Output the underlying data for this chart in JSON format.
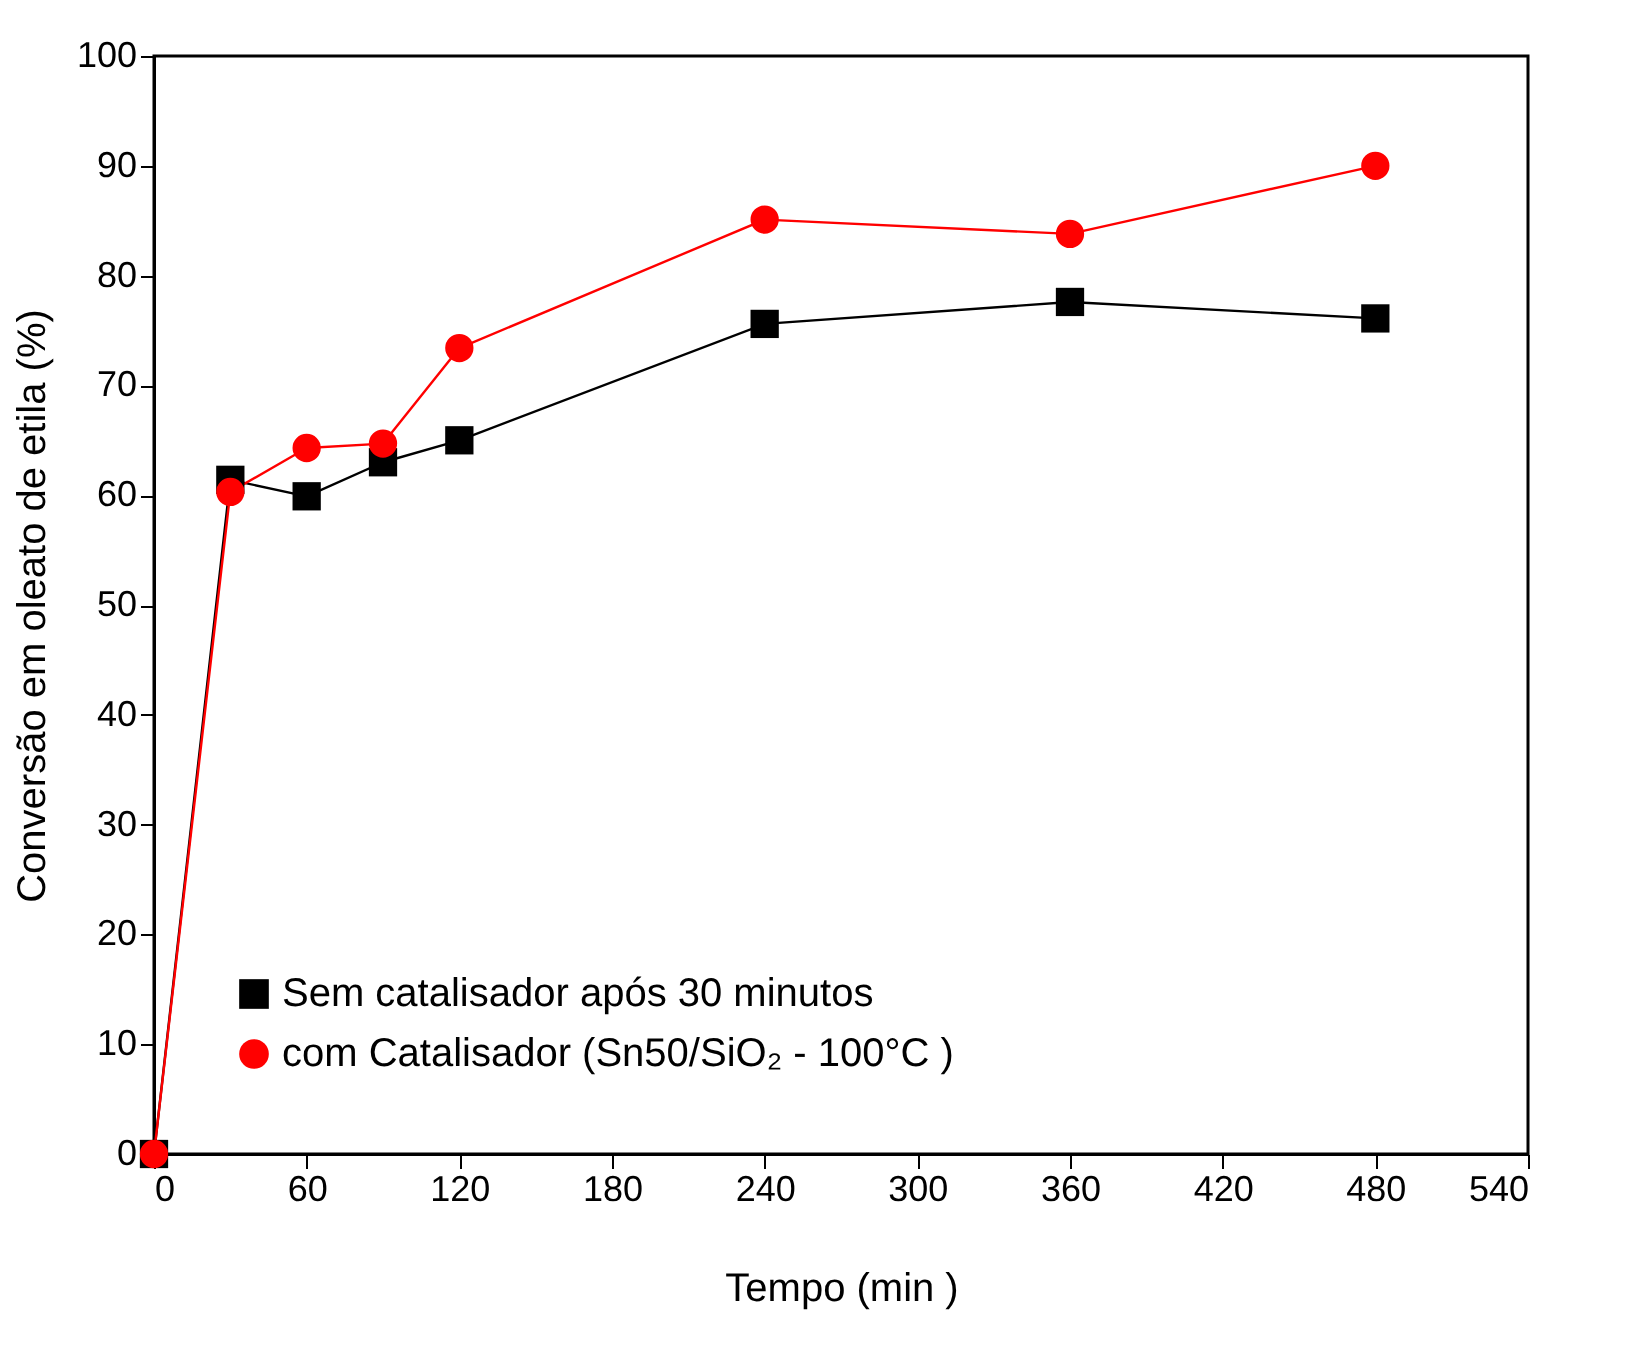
{
  "chart_data": {
    "type": "line",
    "xlabel": "Tempo   (min )",
    "ylabel": "Conversão em oleato de etila    (%)",
    "x": [
      0,
      30,
      60,
      90,
      120,
      240,
      360,
      480
    ],
    "xlim": [
      0,
      540
    ],
    "xticks": [
      0,
      60,
      120,
      180,
      240,
      300,
      360,
      420,
      480,
      540
    ],
    "ylim": [
      0,
      100
    ],
    "yticks": [
      0,
      10,
      20,
      30,
      40,
      50,
      60,
      70,
      80,
      90,
      100
    ],
    "grid": false,
    "legend": "bottom left",
    "series": [
      {
        "name": "Sem catalisador após 30 minutos",
        "color": "#000000",
        "marker": "square",
        "values": [
          0,
          61.4,
          59.9,
          63.0,
          65.0,
          75.6,
          77.6,
          76.1
        ]
      },
      {
        "name": "com Catalisador    (Sn50/SiO₂ - 100°C )",
        "color": "#ff0000",
        "marker": "circle",
        "values": [
          0,
          60.3,
          64.3,
          64.7,
          73.4,
          85.1,
          83.8,
          90.0
        ]
      }
    ]
  }
}
